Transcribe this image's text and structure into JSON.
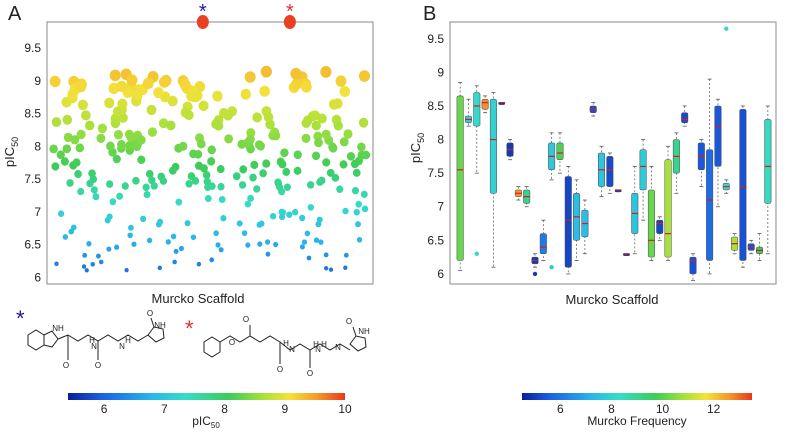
{
  "chart_data": [
    {
      "panel": "A",
      "type": "scatter",
      "xlabel": "Murcko Scaffold",
      "ylabel": "pIC",
      "ylabel_sub": "50",
      "ylim": [
        5.9,
        9.9
      ],
      "yticks": [
        "6",
        "6.5",
        "7",
        "7.5",
        "8",
        "8.5",
        "9",
        "9.5"
      ],
      "highlights": [
        {
          "marker": "*",
          "color": "#1a1aa0",
          "x_frac": 0.478,
          "value": 9.82
        },
        {
          "marker": "*",
          "color": "#e03030",
          "x_frac": 0.745,
          "value": 9.82
        }
      ],
      "colorbar": {
        "label": "pIC",
        "label_sub": "50",
        "range": [
          5.4,
          10
        ],
        "ticks": [
          "6",
          "7",
          "8",
          "9",
          "10"
        ],
        "colors": [
          "#0a1e9c",
          "#1b5fe0",
          "#2ab4ea",
          "#36dcc8",
          "#3ccc5a",
          "#a4e03c",
          "#f4e23a",
          "#f29a2a",
          "#e8381c"
        ]
      },
      "points_note": "~300 scaffold points; values generated procedurally from series seeds below",
      "series_seed": 42,
      "n_points": 300
    },
    {
      "panel": "B",
      "type": "box",
      "xlabel": "Murcko Scaffold",
      "ylabel": "pIC",
      "ylabel_sub": "50",
      "ylim": [
        5.85,
        9.75
      ],
      "yticks": [
        "6",
        "6.5",
        "7",
        "7.5",
        "8",
        "8.5",
        "9",
        "9.5"
      ],
      "colorbar": {
        "label": "Murcko Frequency",
        "range": [
          4.5,
          13.5
        ],
        "ticks": [
          "6",
          "8",
          "10",
          "12"
        ],
        "colors": [
          "#0a1e9c",
          "#1b5fe0",
          "#2ab4ea",
          "#36dcc8",
          "#3ccc5a",
          "#a4e03c",
          "#f4e23a",
          "#f29a2a",
          "#e8381c"
        ]
      },
      "boxes": [
        {
          "q1": 6.2,
          "med": 7.55,
          "q3": 8.65,
          "lo": 6.05,
          "hi": 8.85,
          "freq": 9.5
        },
        {
          "q1": 8.25,
          "med": 8.3,
          "q3": 8.35,
          "lo": 8.2,
          "hi": 8.6,
          "freq": 7.5
        },
        {
          "q1": 8.2,
          "med": 8.5,
          "q3": 8.7,
          "lo": 7.5,
          "hi": 8.8,
          "freq": 7.8
        },
        {
          "q1": 8.45,
          "med": 8.55,
          "q3": 8.6,
          "lo": 8.4,
          "hi": 8.65,
          "freq": 12.5
        },
        {
          "q1": 7.2,
          "med": 8.0,
          "q3": 8.6,
          "lo": 6.1,
          "hi": 8.7,
          "freq": 7.6
        },
        {
          "q1": 8.55,
          "med": 8.55,
          "q3": 8.55,
          "lo": 8.55,
          "hi": 8.55,
          "freq": 4.8
        },
        {
          "q1": 7.75,
          "med": 7.85,
          "q3": 7.95,
          "lo": 7.7,
          "hi": 8.0,
          "freq": 5.0
        },
        {
          "q1": 7.15,
          "med": 7.2,
          "q3": 7.25,
          "lo": 7.1,
          "hi": 7.3,
          "freq": 12.4
        },
        {
          "q1": 7.05,
          "med": 7.15,
          "q3": 7.25,
          "lo": 7.0,
          "hi": 7.3,
          "freq": 8.5
        },
        {
          "q1": 6.15,
          "med": 6.2,
          "q3": 6.25,
          "lo": 6.1,
          "hi": 6.3,
          "freq": 5.0
        },
        {
          "q1": 6.3,
          "med": 6.4,
          "q3": 6.6,
          "lo": 6.2,
          "hi": 6.8,
          "freq": 6.0
        },
        {
          "q1": 7.55,
          "med": 7.75,
          "q3": 7.95,
          "lo": 7.4,
          "hi": 8.1,
          "freq": 7.3
        },
        {
          "q1": 7.7,
          "med": 7.8,
          "q3": 7.95,
          "lo": 7.5,
          "hi": 8.1,
          "freq": 9.2
        },
        {
          "q1": 6.1,
          "med": 6.8,
          "q3": 7.45,
          "lo": 6.0,
          "hi": 7.6,
          "freq": 5.2
        },
        {
          "q1": 6.5,
          "med": 6.85,
          "q3": 7.2,
          "lo": 6.2,
          "hi": 7.4,
          "freq": 7.0
        },
        {
          "q1": 6.55,
          "med": 6.75,
          "q3": 6.95,
          "lo": 6.3,
          "hi": 7.1,
          "freq": 7.0
        },
        {
          "q1": 8.4,
          "med": 8.45,
          "q3": 8.5,
          "lo": 8.35,
          "hi": 8.55,
          "freq": 5.4
        },
        {
          "q1": 7.3,
          "med": 7.55,
          "q3": 7.8,
          "lo": 7.15,
          "hi": 7.9,
          "freq": 7.2
        },
        {
          "q1": 7.3,
          "med": 7.55,
          "q3": 7.75,
          "lo": 7.2,
          "hi": 7.8,
          "freq": 5.3
        },
        {
          "q1": 7.25,
          "med": 7.25,
          "q3": 7.25,
          "lo": 7.25,
          "hi": 7.25,
          "freq": 5.0
        },
        {
          "q1": 6.3,
          "med": 6.3,
          "q3": 6.3,
          "lo": 6.3,
          "hi": 6.3,
          "freq": 5.0
        },
        {
          "q1": 6.6,
          "med": 6.9,
          "q3": 7.2,
          "lo": 6.3,
          "hi": 7.6,
          "freq": 7.2
        },
        {
          "q1": 7.25,
          "med": 7.6,
          "q3": 7.85,
          "lo": 6.8,
          "hi": 8.0,
          "freq": 7.4
        },
        {
          "q1": 6.25,
          "med": 6.5,
          "q3": 7.25,
          "lo": 6.2,
          "hi": 7.6,
          "freq": 9.5
        },
        {
          "q1": 6.6,
          "med": 6.75,
          "q3": 6.8,
          "lo": 6.5,
          "hi": 6.85,
          "freq": 5.2
        },
        {
          "q1": 6.25,
          "med": 6.6,
          "q3": 7.7,
          "lo": 6.2,
          "hi": 7.9,
          "freq": 10.2
        },
        {
          "q1": 7.5,
          "med": 7.75,
          "q3": 8.0,
          "lo": 7.2,
          "hi": 8.1,
          "freq": 8.5
        },
        {
          "q1": 8.25,
          "med": 8.3,
          "q3": 8.4,
          "lo": 8.2,
          "hi": 8.5,
          "freq": 5.3
        },
        {
          "q1": 6.0,
          "med": 6.2,
          "q3": 6.25,
          "lo": 5.9,
          "hi": 6.3,
          "freq": 5.4
        },
        {
          "q1": 7.55,
          "med": 7.75,
          "q3": 7.95,
          "lo": 7.3,
          "hi": 8.0,
          "freq": 5.5
        },
        {
          "q1": 6.2,
          "med": 7.1,
          "q3": 7.85,
          "lo": 6.0,
          "hi": 8.9,
          "freq": 5.8
        },
        {
          "q1": 7.6,
          "med": 8.2,
          "q3": 8.5,
          "lo": 7.0,
          "hi": 8.6,
          "freq": 5.5
        },
        {
          "q1": 7.25,
          "med": 7.3,
          "q3": 7.35,
          "lo": 7.2,
          "hi": 7.4,
          "freq": 7.8
        },
        {
          "q1": 6.35,
          "med": 6.45,
          "q3": 6.55,
          "lo": 6.3,
          "hi": 6.6,
          "freq": 10.2
        },
        {
          "q1": 6.2,
          "med": 7.3,
          "q3": 8.45,
          "lo": 6.1,
          "hi": 8.5,
          "freq": 5.4
        },
        {
          "q1": 6.35,
          "med": 6.4,
          "q3": 6.45,
          "lo": 6.3,
          "hi": 6.5,
          "freq": 5.4
        },
        {
          "q1": 6.3,
          "med": 6.35,
          "q3": 6.4,
          "lo": 6.2,
          "hi": 6.6,
          "freq": 9.0
        },
        {
          "q1": 7.05,
          "med": 7.6,
          "q3": 8.3,
          "lo": 6.3,
          "hi": 8.5,
          "freq": 8.0
        }
      ],
      "outliers": [
        {
          "box": 2,
          "value": 6.3
        },
        {
          "box": 8,
          "value": 7.1
        },
        {
          "box": 9,
          "value": 6.0
        },
        {
          "box": 11,
          "value": 6.1
        },
        {
          "box": 32,
          "value": 9.65
        }
      ]
    }
  ],
  "panel_labels": {
    "a": "A",
    "b": "B"
  },
  "molecules": {
    "star_left": "*",
    "star_right": "*",
    "left_atoms": [
      "NH",
      "O",
      "H",
      "N",
      "N",
      "O",
      "H",
      "O",
      "NH"
    ],
    "right_atoms": [
      "O",
      "O",
      "O",
      "H",
      "N",
      "N",
      "O",
      "H",
      "N",
      "O",
      "H",
      "NH"
    ]
  }
}
